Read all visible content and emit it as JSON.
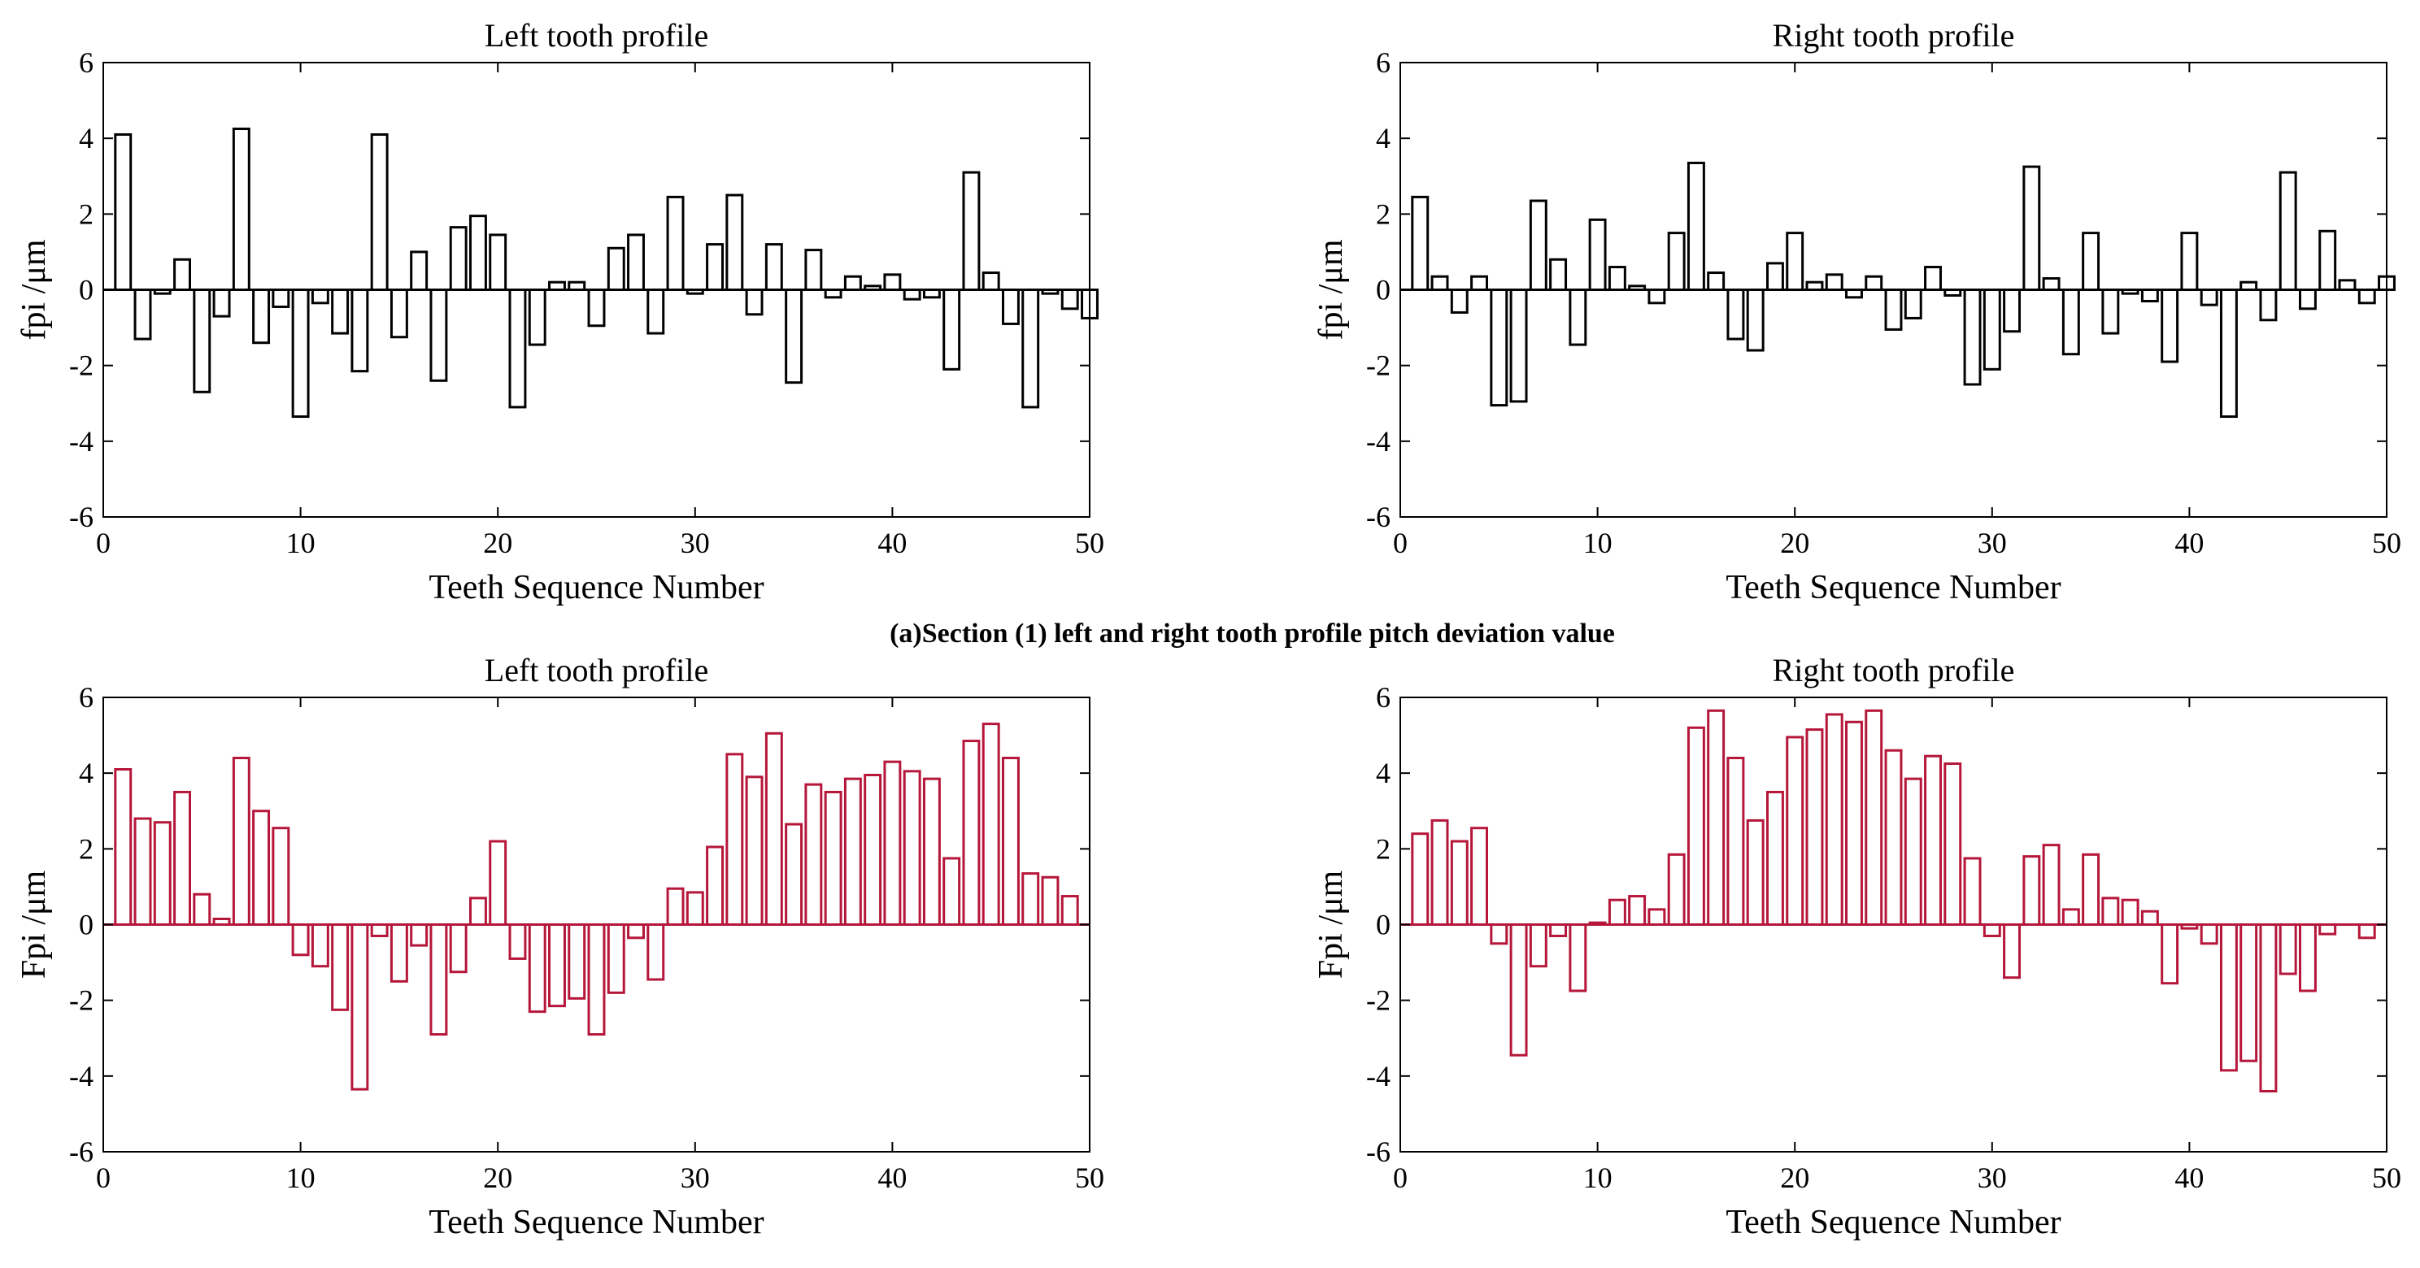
{
  "figure": {
    "caption": "(a)Section (1) left and right tooth profile pitch deviation value"
  },
  "colors": {
    "black_bars": "#000000",
    "red_bars": "#b5163a",
    "axis": "#000000"
  },
  "chart_data": [
    {
      "type": "bar",
      "title": "Left tooth profile",
      "xlabel": "Teeth Sequence Number",
      "ylabel": "fpi /μm",
      "xlim": [
        0,
        50
      ],
      "ylim": [
        -6,
        6
      ],
      "xticks": [
        0,
        10,
        20,
        30,
        40,
        50
      ],
      "yticks": [
        -6,
        -4,
        -2,
        0,
        2,
        4,
        6
      ],
      "bar_color": "black",
      "x": [
        1,
        2,
        3,
        4,
        5,
        6,
        7,
        8,
        9,
        10,
        11,
        12,
        13,
        14,
        15,
        16,
        17,
        18,
        19,
        20,
        21,
        22,
        23,
        24,
        25,
        26,
        27,
        28,
        29,
        30,
        31,
        32,
        33,
        34,
        35,
        36,
        37,
        38,
        39,
        40,
        41,
        42,
        43,
        44,
        45,
        46,
        47,
        48,
        49,
        50
      ],
      "values": [
        4.1,
        -1.3,
        -0.1,
        0.8,
        -2.7,
        -0.7,
        4.25,
        -1.4,
        -0.45,
        -3.35,
        -0.35,
        -1.15,
        -2.15,
        4.1,
        -1.25,
        1.0,
        -2.4,
        1.65,
        1.95,
        1.45,
        -3.1,
        -1.45,
        0.2,
        0.2,
        -0.95,
        1.1,
        1.45,
        -1.15,
        2.45,
        -0.1,
        1.2,
        2.5,
        -0.65,
        1.2,
        -2.45,
        1.05,
        -0.2,
        0.35,
        0.1,
        0.4,
        -0.25,
        -0.2,
        -2.1,
        3.1,
        0.45,
        -0.9,
        -3.1,
        -0.1,
        -0.5,
        -0.75
      ]
    },
    {
      "type": "bar",
      "title": "Right tooth profile",
      "xlabel": "Teeth Sequence Number",
      "ylabel": "fpi /μm",
      "xlim": [
        0,
        50
      ],
      "ylim": [
        -6,
        6
      ],
      "xticks": [
        0,
        10,
        20,
        30,
        40,
        50
      ],
      "yticks": [
        -6,
        -4,
        -2,
        0,
        2,
        4,
        6
      ],
      "bar_color": "black",
      "x": [
        1,
        2,
        3,
        4,
        5,
        6,
        7,
        8,
        9,
        10,
        11,
        12,
        13,
        14,
        15,
        16,
        17,
        18,
        19,
        20,
        21,
        22,
        23,
        24,
        25,
        26,
        27,
        28,
        29,
        30,
        31,
        32,
        33,
        34,
        35,
        36,
        37,
        38,
        39,
        40,
        41,
        42,
        43,
        44,
        45,
        46,
        47,
        48,
        49,
        50
      ],
      "values": [
        2.45,
        0.35,
        -0.6,
        0.35,
        -3.05,
        -2.95,
        2.35,
        0.8,
        -1.45,
        1.85,
        0.6,
        0.1,
        -0.35,
        1.5,
        3.35,
        0.45,
        -1.3,
        -1.6,
        0.7,
        1.5,
        0.2,
        0.4,
        -0.2,
        0.35,
        -1.05,
        -0.75,
        0.6,
        -0.15,
        -2.5,
        -2.1,
        -1.1,
        3.25,
        0.3,
        -1.7,
        1.5,
        -1.15,
        -0.1,
        -0.3,
        -1.9,
        1.5,
        -0.4,
        -3.35,
        0.2,
        -0.8,
        3.1,
        -0.5,
        1.55,
        0.25,
        -0.35,
        0.35
      ]
    },
    {
      "type": "bar",
      "title": "Left tooth profile",
      "xlabel": "Teeth Sequence Number",
      "ylabel": "Fpi /μm",
      "xlim": [
        0,
        50
      ],
      "ylim": [
        -6,
        6
      ],
      "xticks": [
        0,
        10,
        20,
        30,
        40,
        50
      ],
      "yticks": [
        -6,
        -4,
        -2,
        0,
        2,
        4,
        6
      ],
      "bar_color": "red",
      "x": [
        1,
        2,
        3,
        4,
        5,
        6,
        7,
        8,
        9,
        10,
        11,
        12,
        13,
        14,
        15,
        16,
        17,
        18,
        19,
        20,
        21,
        22,
        23,
        24,
        25,
        26,
        27,
        28,
        29,
        30,
        31,
        32,
        33,
        34,
        35,
        36,
        37,
        38,
        39,
        40,
        41,
        42,
        43,
        44,
        45,
        46,
        47,
        48,
        49,
        50
      ],
      "values": [
        4.1,
        2.8,
        2.7,
        3.5,
        0.8,
        0.15,
        4.4,
        3.0,
        2.55,
        -0.8,
        -1.1,
        -2.25,
        -4.35,
        -0.3,
        -1.5,
        -0.55,
        -2.9,
        -1.25,
        0.7,
        2.2,
        -0.9,
        -2.3,
        -2.15,
        -1.95,
        -2.9,
        -1.8,
        -0.35,
        -1.45,
        0.95,
        0.85,
        2.05,
        4.5,
        3.9,
        5.05,
        2.65,
        3.7,
        3.5,
        3.85,
        3.95,
        4.3,
        4.05,
        3.85,
        1.75,
        4.85,
        5.3,
        4.4,
        1.35,
        1.25,
        0.75,
        0.0
      ]
    },
    {
      "type": "bar",
      "title": "Right tooth profile",
      "xlabel": "Teeth Sequence Number",
      "ylabel": "Fpi /μm",
      "xlim": [
        0,
        50
      ],
      "ylim": [
        -6,
        6
      ],
      "xticks": [
        0,
        10,
        20,
        30,
        40,
        50
      ],
      "yticks": [
        -6,
        -4,
        -2,
        0,
        2,
        4,
        6
      ],
      "bar_color": "red",
      "x": [
        1,
        2,
        3,
        4,
        5,
        6,
        7,
        8,
        9,
        10,
        11,
        12,
        13,
        14,
        15,
        16,
        17,
        18,
        19,
        20,
        21,
        22,
        23,
        24,
        25,
        26,
        27,
        28,
        29,
        30,
        31,
        32,
        33,
        34,
        35,
        36,
        37,
        38,
        39,
        40,
        41,
        42,
        43,
        44,
        45,
        46,
        47,
        48,
        49,
        50
      ],
      "values": [
        2.4,
        2.75,
        2.2,
        2.55,
        -0.5,
        -3.45,
        -1.1,
        -0.3,
        -1.75,
        0.05,
        0.65,
        0.75,
        0.4,
        1.85,
        5.2,
        5.65,
        4.4,
        2.75,
        3.5,
        4.95,
        5.15,
        5.55,
        5.35,
        5.65,
        4.6,
        3.85,
        4.45,
        4.25,
        1.75,
        -0.3,
        -1.4,
        1.8,
        2.1,
        0.4,
        1.85,
        0.7,
        0.65,
        0.35,
        -1.55,
        -0.1,
        -0.5,
        -3.85,
        -3.6,
        -4.4,
        -1.3,
        -1.75,
        -0.25,
        0.0,
        -0.35,
        0.0
      ]
    }
  ]
}
